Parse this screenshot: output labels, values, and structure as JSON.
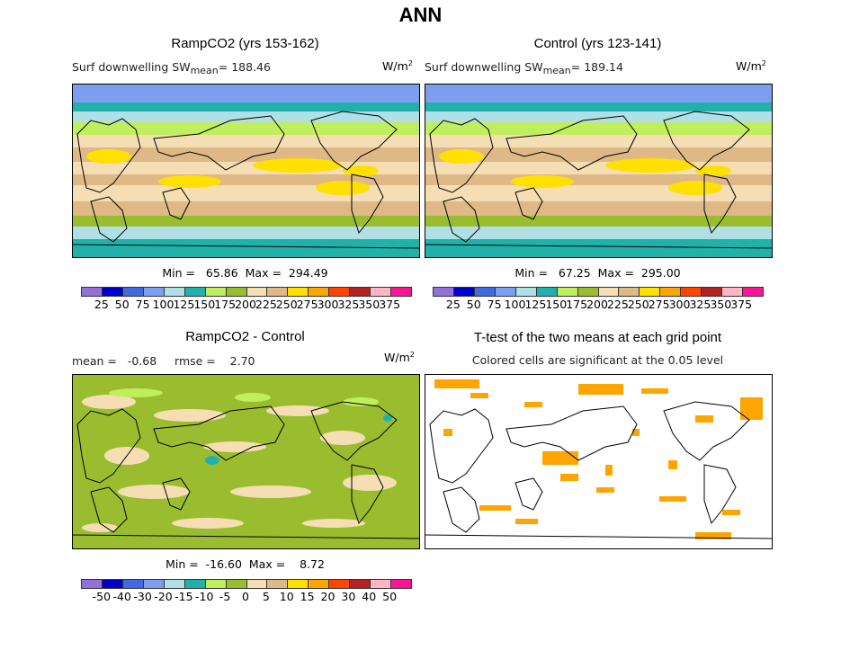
{
  "title": "ANN",
  "panels": {
    "rampco2": {
      "title": "RampCO2 (yrs 153-162)",
      "variable": "Surf downwelling SW",
      "mean_label": "mean",
      "mean_value": "= 188.46",
      "units_base": "W/m",
      "units_exp": "2",
      "minmax": "Min =   65.86  Max =  294.49"
    },
    "control": {
      "title": "Control (yrs 123-141)",
      "variable": "Surf downwelling SW",
      "mean_label": "mean",
      "mean_value": "= 189.14",
      "units_base": "W/m",
      "units_exp": "2",
      "minmax": "Min =   67.25  Max =  295.00"
    },
    "difference": {
      "title": "RampCO2 - Control",
      "stats": "mean =   -0.68     rmse =    2.70",
      "units_base": "W/m",
      "units_exp": "2",
      "minmax": "Min =  -16.60  Max =    8.72"
    },
    "ttest": {
      "title": "T-test of the two means at each grid point",
      "subtitle": "Colored cells are significant at the 0.05 level",
      "significant_color": "#FFA500"
    }
  },
  "colorbars": {
    "colors": [
      "#9370DB",
      "#0000CD",
      "#4169E1",
      "#7B9EF0",
      "#B0E0E6",
      "#20B2AA",
      "#BFEF5F",
      "#9ABD30",
      "#F5DEB3",
      "#DEB887",
      "#FFE000",
      "#FFA500",
      "#FF4500",
      "#B22222",
      "#FFB6C1",
      "#FF1493"
    ],
    "mean_labels": [
      "25",
      "50",
      "75",
      "100",
      "125",
      "150",
      "175",
      "200",
      "225",
      "250",
      "275",
      "300",
      "325",
      "350",
      "375"
    ],
    "diff_labels": [
      "-50",
      "-40",
      "-30",
      "-20",
      "-15",
      "-10",
      "-5",
      "0",
      "5",
      "10",
      "15",
      "20",
      "30",
      "40",
      "50"
    ]
  }
}
